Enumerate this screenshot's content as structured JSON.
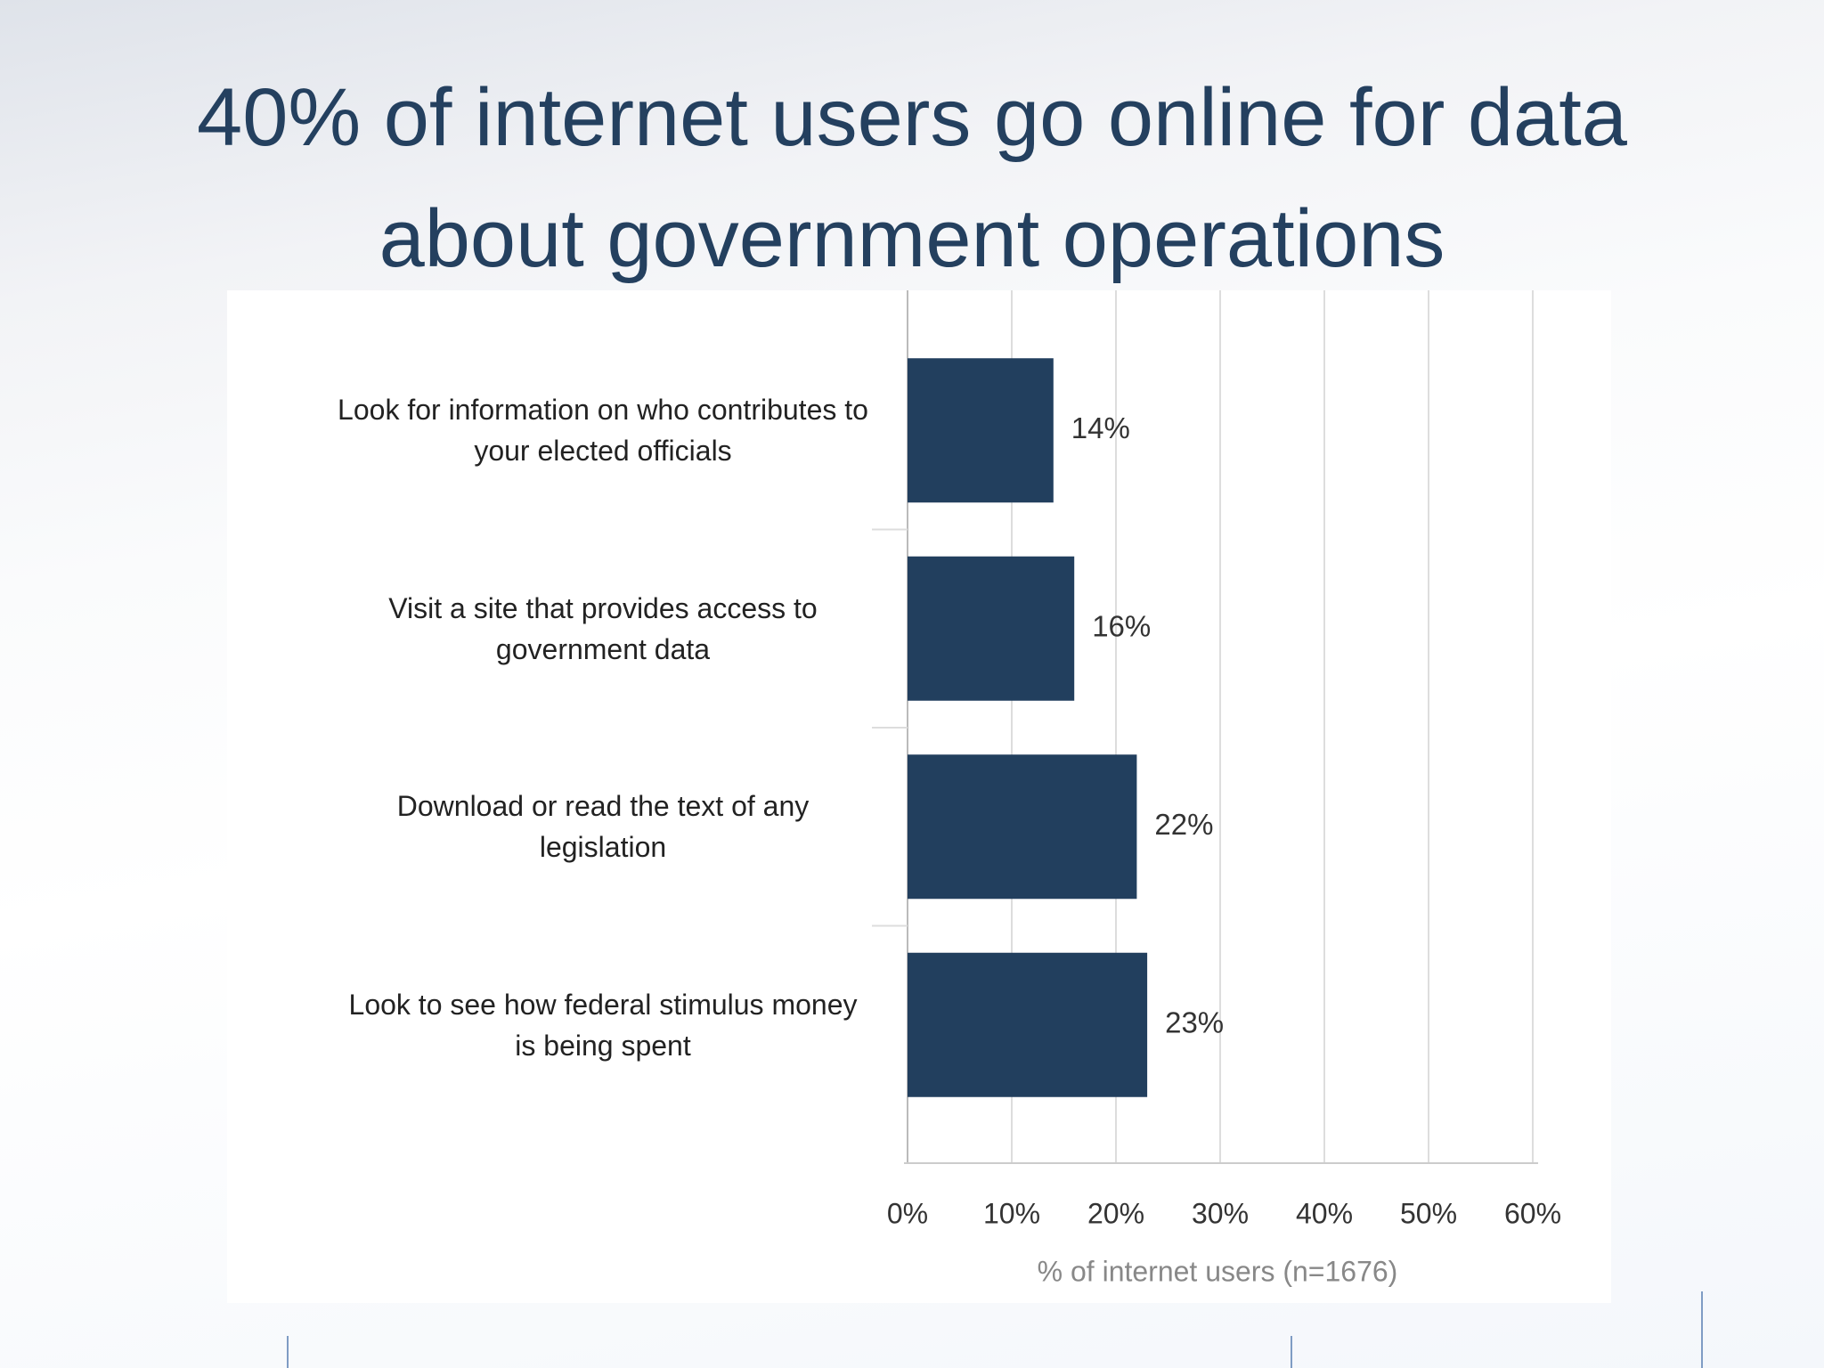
{
  "chart_data": {
    "type": "bar",
    "orientation": "horizontal",
    "title": "40% of internet users go online for data about government operations",
    "categories": [
      "Look for information on who contributes to your elected officials",
      "Visit a site that provides access to government data",
      "Download or read the text of any legislation",
      "Look to see how federal stimulus money is being spent"
    ],
    "values": [
      14,
      16,
      22,
      23
    ],
    "value_labels": [
      "14%",
      "16%",
      "22%",
      "23%"
    ],
    "color": "#223f5e",
    "x_label": "% of internet users (n=1676)",
    "xlim": [
      0,
      60
    ],
    "xticks": [
      {
        "value": 0,
        "label": "0%"
      },
      {
        "value": 10,
        "label": "10%"
      },
      {
        "value": 20,
        "label": "20%"
      },
      {
        "value": 30,
        "label": "30%"
      },
      {
        "value": 40,
        "label": "40%"
      },
      {
        "value": 50,
        "label": "50%"
      },
      {
        "value": 60,
        "label": "60%"
      }
    ],
    "grid": true
  }
}
